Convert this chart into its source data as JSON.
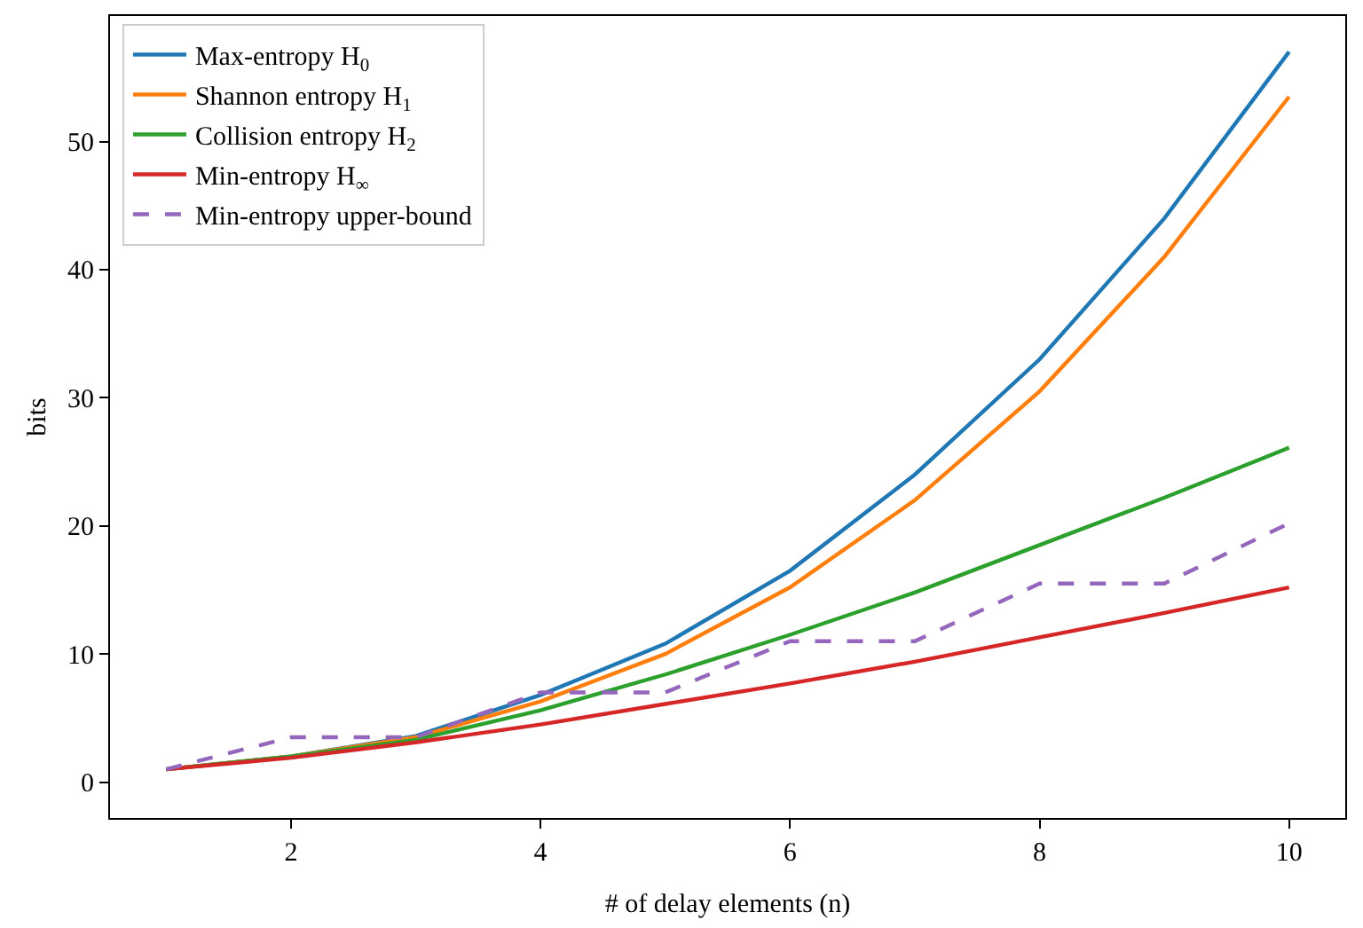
{
  "chart_data": {
    "type": "line",
    "xlabel": "# of delay elements (n)",
    "ylabel": "bits",
    "x": [
      1,
      2,
      3,
      4,
      5,
      6,
      7,
      8,
      9,
      10
    ],
    "xlim": [
      0.55,
      10.45
    ],
    "xticks": [
      2,
      4,
      6,
      8,
      10
    ],
    "ylim": [
      -2.8,
      59.8
    ],
    "yticks": [
      0,
      10,
      20,
      30,
      40,
      50
    ],
    "legend": "top left",
    "marker": "none",
    "series": [
      {
        "name": "Max-entropy H$_{0}$",
        "color": "#1f77b4",
        "values": [
          1,
          2,
          3.6,
          6.8,
          10.8,
          16.5,
          24,
          33,
          44,
          57
        ]
      },
      {
        "name": "Shannon entropy H$_{1}$",
        "color": "#ff7f0e",
        "values": [
          1,
          2,
          3.5,
          6.3,
          10,
          15.2,
          22,
          30.5,
          41,
          53.5
        ]
      },
      {
        "name": "Collision entropy H$_{2}$",
        "color": "#2ca02c",
        "values": [
          1,
          2,
          3.3,
          5.6,
          8.4,
          11.5,
          14.8,
          18.5,
          22.2,
          26.1
        ]
      },
      {
        "name": "Min-entropy H$_{∞}$",
        "color": "#d62728",
        "values": [
          1,
          1.9,
          3.1,
          4.5,
          6.1,
          7.7,
          9.4,
          11.3,
          13.2,
          15.2
        ]
      },
      {
        "name": "Min-entropy upper-bound",
        "color": "#9467bd",
        "line_style": "dashed",
        "values": [
          1,
          3.5,
          3.5,
          7,
          7,
          11,
          11,
          15.5,
          15.5,
          20.2
        ]
      }
    ]
  }
}
